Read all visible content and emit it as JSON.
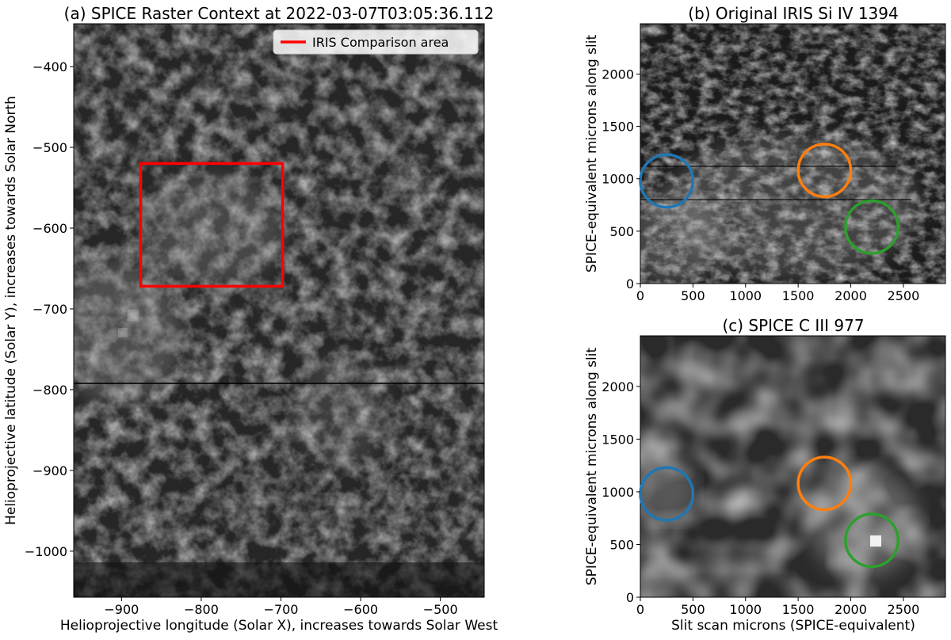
{
  "chart_data": [
    {
      "panel": "a",
      "type": "heatmap",
      "title": "(a) SPICE Raster Context at 2022-03-07T03:05:36.112",
      "xlabel": "Helioprojective longitude (Solar X), increases towards Solar West",
      "ylabel": "Helioprojective latitude (Solar Y), increases towards Solar North",
      "xlim": [
        -960,
        -445
      ],
      "ylim": [
        -1057,
        -347
      ],
      "xticks": [
        -900,
        -800,
        -700,
        -600,
        -500
      ],
      "yticks": [
        -400,
        -500,
        -600,
        -700,
        -800,
        -900,
        -1000
      ],
      "colormap": "gray",
      "overlay_rect": {
        "label": "IRIS Comparison area",
        "x": [
          -876,
          -698
        ],
        "y": [
          -672,
          -520
        ],
        "color": "#ff0000"
      },
      "legend_position": "upper right",
      "legend": [
        {
          "label": "IRIS Comparison area",
          "color": "#ff0000"
        }
      ]
    },
    {
      "panel": "b",
      "type": "heatmap",
      "title": "(b) Original IRIS Si IV 1394",
      "xlabel": "",
      "ylabel": "SPICE-equivalent microns along slit",
      "xlim": [
        0,
        2900
      ],
      "ylim": [
        0,
        2480
      ],
      "xticks": [
        0,
        500,
        1000,
        1500,
        2000,
        2500
      ],
      "yticks": [
        0,
        500,
        1000,
        1500,
        2000
      ],
      "colormap": "gray",
      "circles": [
        {
          "x": 250,
          "y": 980,
          "r": 250,
          "color": "#1f77b4"
        },
        {
          "x": 1750,
          "y": 1080,
          "r": 250,
          "color": "#ff7f0e"
        },
        {
          "x": 2200,
          "y": 540,
          "r": 250,
          "color": "#2ca02c"
        }
      ]
    },
    {
      "panel": "c",
      "type": "heatmap",
      "title": "(c) SPICE C III 977",
      "xlabel": "Slit scan microns (SPICE-equivalent)",
      "ylabel": "SPICE-equivalent microns along slit",
      "xlim": [
        0,
        2900
      ],
      "ylim": [
        0,
        2480
      ],
      "xticks": [
        0,
        500,
        1000,
        1500,
        2000,
        2500
      ],
      "yticks": [
        0,
        500,
        1000,
        1500,
        2000
      ],
      "colormap": "gray",
      "circles": [
        {
          "x": 250,
          "y": 980,
          "r": 250,
          "color": "#1f77b4"
        },
        {
          "x": 1750,
          "y": 1080,
          "r": 250,
          "color": "#ff7f0e"
        },
        {
          "x": 2200,
          "y": 540,
          "r": 250,
          "color": "#2ca02c"
        }
      ]
    }
  ]
}
